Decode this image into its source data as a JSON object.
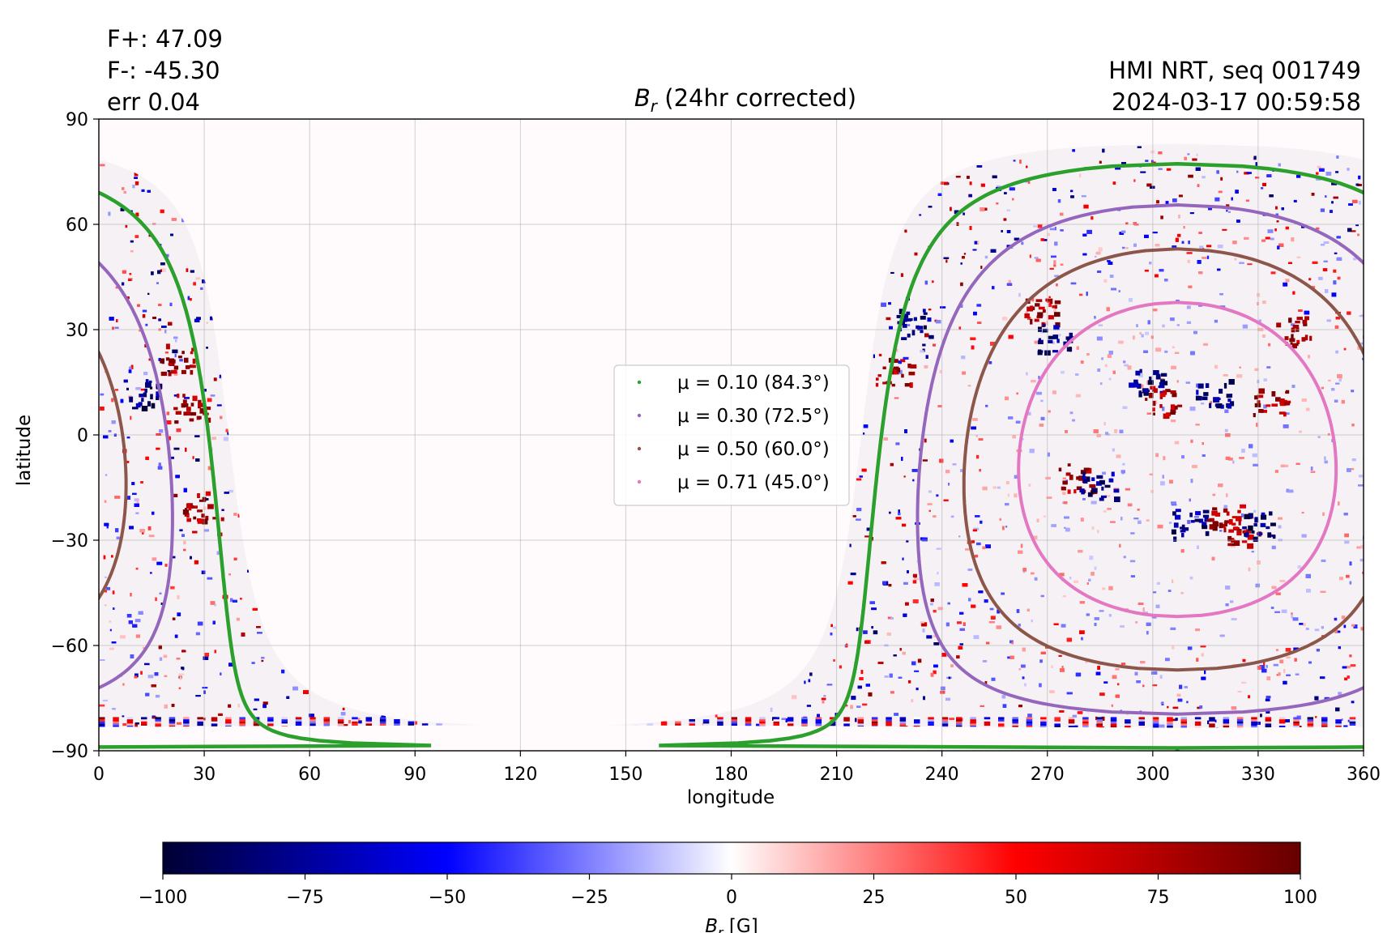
{
  "stats": {
    "fplus": "F+: 47.09",
    "fminus": "F-: -45.30",
    "err": "err 0.04"
  },
  "source": {
    "instrument": "HMI NRT, seq 001749",
    "timestamp": "2024-03-17 00:59:58"
  },
  "chart_data": {
    "type": "heatmap",
    "title_symbol": "B",
    "title_subscript": "r",
    "title_rest": " (24hr corrected)",
    "xlabel": "longitude",
    "ylabel": "latitude",
    "xlim": [
      0,
      360
    ],
    "ylim": [
      -90,
      90
    ],
    "xticks": [
      0,
      30,
      60,
      90,
      120,
      150,
      180,
      210,
      240,
      270,
      300,
      330,
      360
    ],
    "yticks": [
      -90,
      -60,
      -30,
      0,
      30,
      60,
      90
    ],
    "ytick_labels": [
      "−90",
      "−60",
      "−30",
      "0",
      "30",
      "60",
      "90"
    ],
    "grid": true,
    "legend_position": "center",
    "disk_center": {
      "lon": 307,
      "lat": -7
    },
    "series": [
      {
        "name": "μ = 0.10 (84.3°)",
        "mu": 0.1,
        "color": "#2ca02c"
      },
      {
        "name": "μ = 0.30 (72.5°)",
        "mu": 0.3,
        "color": "#9467bd"
      },
      {
        "name": "μ = 0.50 (60.0°)",
        "mu": 0.5,
        "color": "#8c564b"
      },
      {
        "name": "μ = 0.71 (45.0°)",
        "mu": 0.71,
        "color": "#e377c2"
      }
    ],
    "colorbar": {
      "label_symbol": "B",
      "label_subscript": "r",
      "label_unit": " [G]",
      "range": [
        -100,
        100
      ],
      "ticks": [
        -100,
        -75,
        -50,
        -25,
        0,
        25,
        50,
        75,
        100
      ],
      "tick_labels": [
        "−100",
        "−75",
        "−50",
        "−25",
        "0",
        "25",
        "50",
        "75",
        "100"
      ],
      "colors": [
        "#000033",
        "#0000ff",
        "#ffffff",
        "#ff0000",
        "#660000"
      ]
    },
    "strong_field_regions": [
      {
        "lon": 22,
        "lat": 22,
        "sign": "positive"
      },
      {
        "lon": 26,
        "lat": 8,
        "sign": "positive"
      },
      {
        "lon": 28,
        "lat": -20,
        "sign": "positive"
      },
      {
        "lon": 12,
        "lat": 12,
        "sign": "negative"
      },
      {
        "lon": 226,
        "lat": 18,
        "sign": "positive"
      },
      {
        "lon": 232,
        "lat": 32,
        "sign": "negative"
      },
      {
        "lon": 268,
        "lat": 35,
        "sign": "positive"
      },
      {
        "lon": 272,
        "lat": 28,
        "sign": "negative"
      },
      {
        "lon": 298,
        "lat": 15,
        "sign": "negative"
      },
      {
        "lon": 302,
        "lat": 10,
        "sign": "positive"
      },
      {
        "lon": 317,
        "lat": 12,
        "sign": "negative"
      },
      {
        "lon": 333,
        "lat": 10,
        "sign": "positive"
      },
      {
        "lon": 340,
        "lat": 30,
        "sign": "positive"
      },
      {
        "lon": 278,
        "lat": -12,
        "sign": "positive"
      },
      {
        "lon": 284,
        "lat": -14,
        "sign": "negative"
      },
      {
        "lon": 310,
        "lat": -25,
        "sign": "negative"
      },
      {
        "lon": 320,
        "lat": -23,
        "sign": "positive"
      },
      {
        "lon": 325,
        "lat": -27,
        "sign": "positive"
      },
      {
        "lon": 330,
        "lat": -25,
        "sign": "negative"
      }
    ]
  }
}
